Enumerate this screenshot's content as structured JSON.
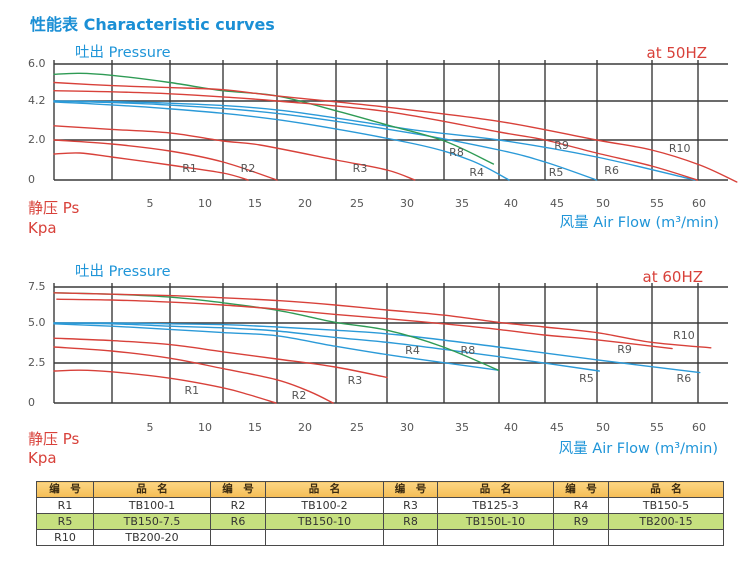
{
  "title": "性能表  Characteristic curves",
  "chart_data": [
    {
      "type": "line",
      "title": "at 50HZ",
      "ylabel_top": "吐出 Pressure",
      "ylabel": "静压 Ps",
      "yunit": "Kpa",
      "xlabel": "风量 Air Flow (m³/min)",
      "xlim": [
        0,
        60
      ],
      "ylim": [
        0,
        6.0
      ],
      "grid": true,
      "x_ticks": [
        5,
        10,
        15,
        20,
        25,
        30,
        35,
        40,
        45,
        50,
        55,
        60
      ],
      "x_tick_labels": [
        "5",
        "10",
        "15",
        "20",
        "25",
        "30",
        "35",
        "40",
        "45",
        "50",
        "55",
        "60"
      ],
      "y_ticks": [
        0,
        2.0,
        4.2,
        6.0
      ],
      "y_tick_labels": [
        "0",
        "2.0",
        "4.2",
        "6.0"
      ],
      "series": [
        {
          "name": "R1",
          "color": "#d8413a",
          "points": [
            [
              0,
              1.3
            ],
            [
              1.35,
              1.35
            ],
            [
              3.0,
              1.15
            ],
            [
              6.8,
              0.75
            ],
            [
              11.8,
              0.35
            ],
            [
              14.3,
              0
            ]
          ]
        },
        {
          "name": "R2",
          "color": "#d8413a",
          "points": [
            [
              0,
              2.0
            ],
            [
              3.0,
              1.8
            ],
            [
              6.8,
              1.45
            ],
            [
              11.8,
              0.9
            ],
            [
              17.2,
              0
            ]
          ]
        },
        {
          "name": "R3",
          "color": "#d8413a",
          "points": [
            [
              0,
              2.8
            ],
            [
              3.0,
              2.6
            ],
            [
              6.8,
              2.4
            ],
            [
              11.8,
              1.95
            ],
            [
              15.5,
              1.75
            ],
            [
              23.0,
              1.0
            ],
            [
              28.0,
              0.5
            ],
            [
              30.7,
              0
            ]
          ]
        },
        {
          "name": "R4",
          "color": "#2b9ad8",
          "points": [
            [
              0,
              4.15
            ],
            [
              5.9,
              3.8
            ],
            [
              17.2,
              3.15
            ],
            [
              30.3,
              1.85
            ],
            [
              35.8,
              1.0
            ],
            [
              39.8,
              0
            ]
          ]
        },
        {
          "name": "R5",
          "color": "#2b9ad8",
          "points": [
            [
              0,
              4.2
            ],
            [
              5.9,
              4.0
            ],
            [
              17.2,
              3.5
            ],
            [
              30.3,
              2.4
            ],
            [
              38.8,
              1.5
            ],
            [
              43.7,
              0.9
            ],
            [
              49.3,
              0
            ]
          ]
        },
        {
          "name": "R6",
          "color": "#2b9ad8",
          "points": [
            [
              0,
              4.2
            ],
            [
              5.9,
              4.1
            ],
            [
              17.2,
              3.7
            ],
            [
              30.3,
              2.6
            ],
            [
              38.8,
              2.0
            ],
            [
              49.3,
              1.15
            ],
            [
              59.5,
              0
            ]
          ]
        },
        {
          "name": "R8",
          "color": "#2f9b55",
          "points": [
            [
              0,
              5.5
            ],
            [
              1.35,
              5.55
            ],
            [
              3.0,
              5.45
            ],
            [
              6.8,
              5.1
            ],
            [
              11.8,
              4.7
            ],
            [
              17.2,
              4.45
            ],
            [
              23.0,
              3.65
            ],
            [
              28.0,
              2.85
            ],
            [
              33.4,
              1.95
            ],
            [
              38.2,
              0.8
            ]
          ]
        },
        {
          "name": "R9",
          "color": "#d8413a",
          "points": [
            [
              0,
              4.7
            ],
            [
              3.0,
              4.65
            ],
            [
              6.8,
              4.55
            ],
            [
              11.8,
              4.4
            ],
            [
              17.2,
              4.2
            ],
            [
              28.0,
              3.6
            ],
            [
              38.8,
              2.45
            ],
            [
              43.7,
              2.0
            ],
            [
              49.3,
              1.35
            ],
            [
              54.5,
              0.7
            ],
            [
              59.8,
              0
            ]
          ]
        },
        {
          "name": "R10",
          "color": "#d8413a",
          "points": [
            [
              0,
              5.1
            ],
            [
              3.0,
              4.95
            ],
            [
              6.8,
              4.85
            ],
            [
              11.8,
              4.75
            ],
            [
              17.2,
              4.45
            ],
            [
              28.0,
              3.85
            ],
            [
              38.8,
              3.05
            ],
            [
              49.3,
              2.0
            ],
            [
              54.5,
              1.5
            ],
            [
              60.1,
              0.75
            ],
            [
              64.5,
              -0.1
            ]
          ]
        }
      ],
      "annotations": [
        {
          "text": "R1",
          "x": 8.6,
          "y": 0.55
        },
        {
          "text": "R2",
          "x": 14.3,
          "y": 0.55
        },
        {
          "text": "R3",
          "x": 25.3,
          "y": 0.55
        },
        {
          "text": "R4",
          "x": 36.5,
          "y": 0.35
        },
        {
          "text": "R5",
          "x": 44.9,
          "y": 0.35
        },
        {
          "text": "R6",
          "x": 50.8,
          "y": 0.45
        },
        {
          "text": "R8",
          "x": 34.5,
          "y": 1.35
        },
        {
          "text": "R9",
          "x": 45.5,
          "y": 1.7
        },
        {
          "text": "R10",
          "x": 57.7,
          "y": 1.55
        }
      ]
    },
    {
      "type": "line",
      "title": "at 60HZ",
      "ylabel_top": "吐出 Pressure",
      "ylabel": "静压 Ps",
      "yunit": "Kpa",
      "xlabel": "风量 Air Flow (m³/min)",
      "xlim": [
        0,
        60
      ],
      "ylim": [
        0,
        7.5
      ],
      "grid": true,
      "x_ticks": [
        5,
        10,
        15,
        20,
        25,
        30,
        35,
        40,
        45,
        50,
        55,
        60
      ],
      "x_tick_labels": [
        "5",
        "10",
        "15",
        "20",
        "25",
        "30",
        "35",
        "40",
        "45",
        "50",
        "55",
        "60"
      ],
      "y_ticks": [
        0,
        2.5,
        5.0,
        7.5
      ],
      "y_tick_labels": [
        "0",
        "2.5",
        "5.0",
        "7.5"
      ],
      "series": [
        {
          "name": "R1",
          "color": "#d8413a",
          "points": [
            [
              0,
              2.0
            ],
            [
              1.35,
              2.05
            ],
            [
              3.0,
              1.95
            ],
            [
              6.8,
              1.55
            ],
            [
              11.8,
              0.95
            ],
            [
              14.5,
              0.5
            ],
            [
              17.1,
              0
            ]
          ]
        },
        {
          "name": "R2",
          "color": "#d8413a",
          "points": [
            [
              0,
              3.5
            ],
            [
              3.0,
              3.25
            ],
            [
              6.8,
              2.8
            ],
            [
              11.8,
              2.15
            ],
            [
              17.2,
              1.45
            ],
            [
              20.5,
              0.7
            ],
            [
              22.7,
              0
            ]
          ]
        },
        {
          "name": "R3",
          "color": "#d8413a",
          "points": [
            [
              0,
              4.05
            ],
            [
              3.0,
              3.9
            ],
            [
              6.8,
              3.65
            ],
            [
              11.8,
              3.2
            ],
            [
              17.2,
              2.75
            ],
            [
              22.9,
              2.25
            ],
            [
              28.0,
              1.6
            ]
          ]
        },
        {
          "name": "R4",
          "color": "#2b9ad8",
          "points": [
            [
              0,
              4.95
            ],
            [
              3.0,
              4.8
            ],
            [
              6.8,
              4.6
            ],
            [
              11.8,
              4.4
            ],
            [
              17.2,
              4.2
            ],
            [
              22.9,
              3.55
            ],
            [
              29.3,
              2.9
            ],
            [
              38.7,
              2.05
            ]
          ]
        },
        {
          "name": "R5",
          "color": "#2b9ad8",
          "points": [
            [
              0,
              5.0
            ],
            [
              3.0,
              4.95
            ],
            [
              6.8,
              4.8
            ],
            [
              11.8,
              4.7
            ],
            [
              17.2,
              4.5
            ],
            [
              22.9,
              4.1
            ],
            [
              29.3,
              3.7
            ],
            [
              38.7,
              2.9
            ],
            [
              49.6,
              2.0
            ]
          ]
        },
        {
          "name": "R6",
          "color": "#2b9ad8",
          "points": [
            [
              0,
              5.0
            ],
            [
              3.0,
              5.0
            ],
            [
              6.8,
              4.95
            ],
            [
              11.8,
              4.9
            ],
            [
              17.2,
              4.75
            ],
            [
              22.9,
              4.55
            ],
            [
              29.3,
              4.25
            ],
            [
              38.7,
              3.5
            ],
            [
              49.3,
              2.7
            ],
            [
              60.1,
              1.9
            ]
          ]
        },
        {
          "name": "R8",
          "color": "#2f9b55",
          "points": [
            [
              0,
              7.1
            ],
            [
              3.0,
              7.0
            ],
            [
              6.8,
              6.8
            ],
            [
              11.8,
              6.4
            ],
            [
              17.5,
              5.85
            ],
            [
              22.9,
              5.05
            ],
            [
              28.0,
              4.55
            ],
            [
              33.3,
              3.5
            ],
            [
              38.7,
              2.05
            ]
          ]
        },
        {
          "name": "R9",
          "color": "#d8413a",
          "points": [
            [
              0.15,
              6.65
            ],
            [
              3.0,
              6.6
            ],
            [
              6.8,
              6.45
            ],
            [
              11.8,
              6.25
            ],
            [
              17.5,
              5.95
            ],
            [
              22.9,
              5.6
            ],
            [
              28.0,
              5.3
            ],
            [
              33.3,
              4.95
            ],
            [
              38.7,
              4.6
            ],
            [
              43.6,
              4.25
            ],
            [
              49.3,
              3.95
            ],
            [
              56.8,
              3.4
            ]
          ]
        },
        {
          "name": "R10",
          "color": "#d8413a",
          "points": [
            [
              0,
              7.1
            ],
            [
              3.0,
              7.0
            ],
            [
              6.8,
              6.9
            ],
            [
              11.8,
              6.75
            ],
            [
              17.5,
              6.55
            ],
            [
              22.9,
              6.25
            ],
            [
              28.0,
              5.9
            ],
            [
              33.3,
              5.55
            ],
            [
              38.7,
              5.05
            ],
            [
              43.6,
              4.75
            ],
            [
              49.3,
              4.4
            ],
            [
              54.4,
              3.8
            ],
            [
              61.4,
              3.45
            ]
          ]
        }
      ],
      "annotations": [
        {
          "text": "R1",
          "x": 8.8,
          "y": 0.75
        },
        {
          "text": "R2",
          "x": 19.4,
          "y": 0.44
        },
        {
          "text": "R3",
          "x": 24.8,
          "y": 1.38
        },
        {
          "text": "R4",
          "x": 30.5,
          "y": 3.25
        },
        {
          "text": "R8",
          "x": 35.6,
          "y": 3.25
        },
        {
          "text": "R9",
          "x": 52.0,
          "y": 3.31
        },
        {
          "text": "R10",
          "x": 58.2,
          "y": 4.19
        },
        {
          "text": "R5",
          "x": 48.2,
          "y": 1.5
        },
        {
          "text": "R6",
          "x": 58.2,
          "y": 1.5
        }
      ]
    }
  ],
  "table": {
    "headers": [
      "编　号",
      "品　名",
      "编　号",
      "品　名",
      "编　号",
      "品　名",
      "编　号",
      "品　名"
    ],
    "rows": [
      [
        "R1",
        "TB100-1",
        "R2",
        "TB100-2",
        "R3",
        "TB125-3",
        "R4",
        "TB150-5"
      ],
      [
        "R5",
        "TB150-7.5",
        "R6",
        "TB150-10",
        "R8",
        "TB150L-10",
        "R9",
        "TB200-15"
      ],
      [
        "R10",
        "TB200-20",
        "",
        "",
        "",
        "",
        "",
        ""
      ]
    ]
  }
}
